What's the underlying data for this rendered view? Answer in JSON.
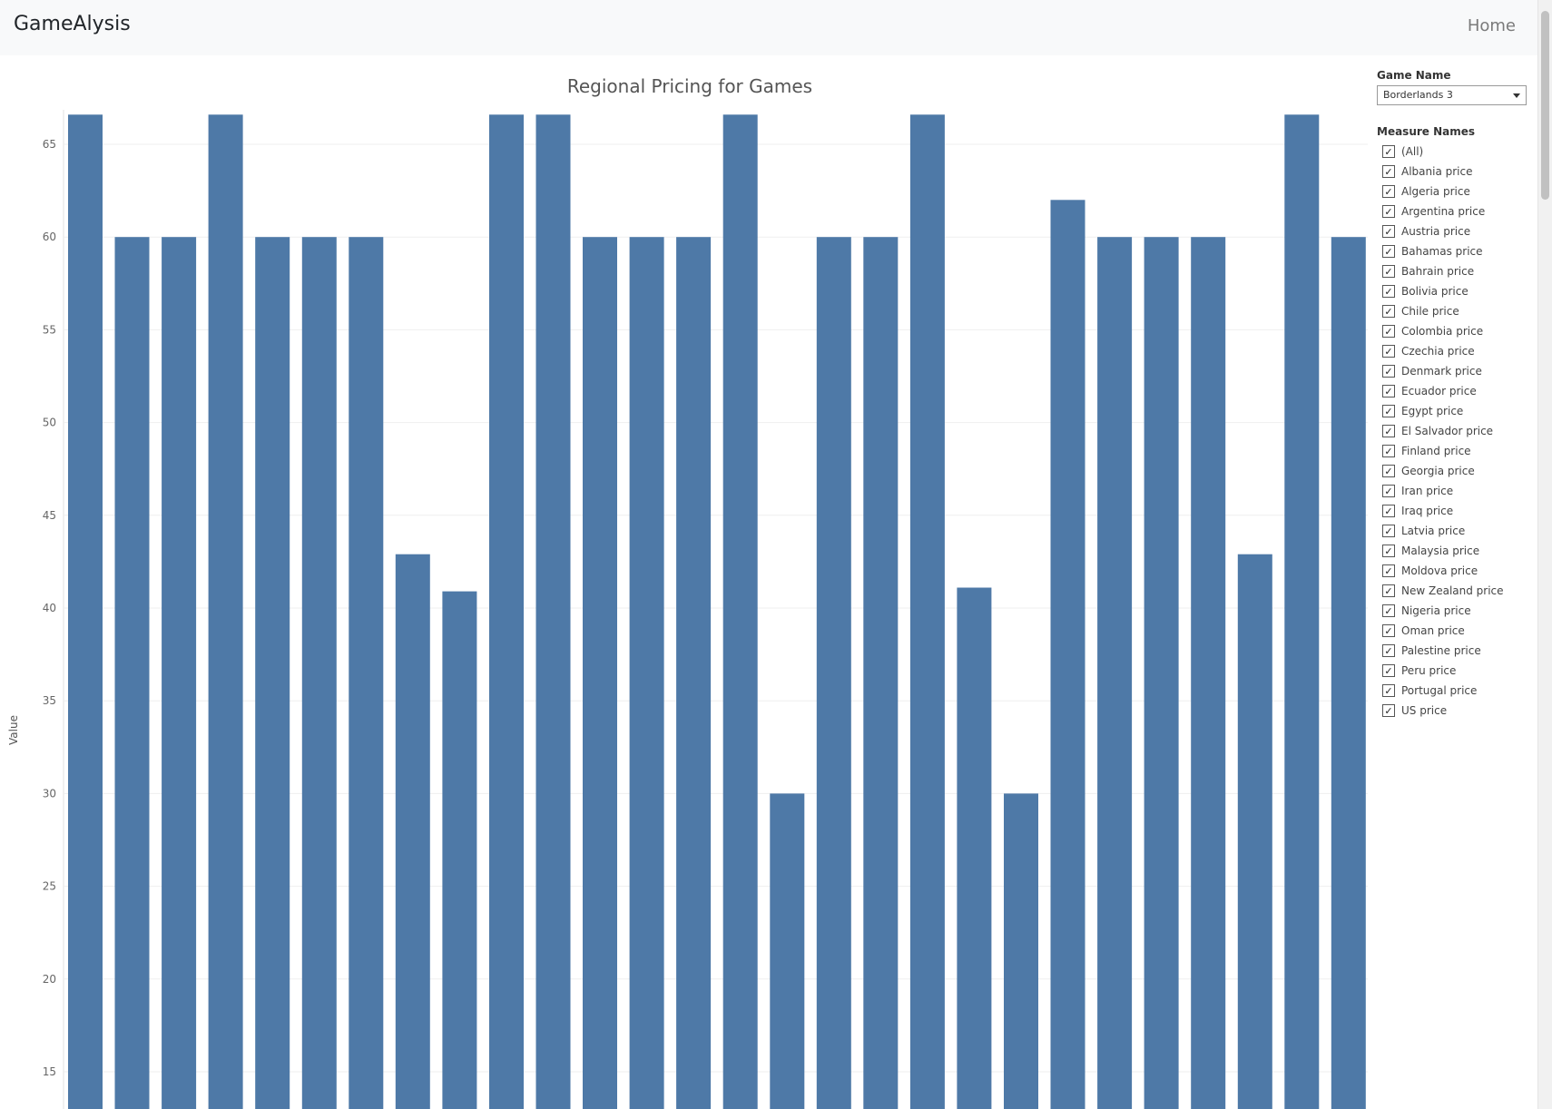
{
  "navbar": {
    "brand": "GameAlysis",
    "home": "Home"
  },
  "filters": {
    "game_name_label": "Game Name",
    "game_name_value": "Borderlands 3",
    "measure_label": "Measure Names",
    "measures": [
      "(All)",
      "Albania price",
      "Algeria price",
      "Argentina price",
      "Austria price",
      "Bahamas price",
      "Bahrain price",
      "Bolivia price",
      "Chile price",
      "Colombia price",
      "Czechia price",
      "Denmark price",
      "Ecuador price",
      "Egypt price",
      "El Salvador price",
      "Finland price",
      "Georgia price",
      "Iran price",
      "Iraq price",
      "Latvia price",
      "Malaysia price",
      "Moldova price",
      "New Zealand price",
      "Nigeria price",
      "Oman price",
      "Palestine price",
      "Peru price",
      "Portugal price",
      "US price"
    ]
  },
  "chart_data": {
    "type": "bar",
    "title": "Regional Pricing for Games",
    "ylabel": "Value",
    "ylim": [
      15,
      69
    ],
    "yticks": [
      15,
      20,
      25,
      30,
      35,
      40,
      45,
      50,
      55,
      60,
      65
    ],
    "grid": true,
    "bar_color": "#4e79a7",
    "categories": [
      "Albania price",
      "Algeria price",
      "Argentina price",
      "Austria price",
      "Bahamas price",
      "Bahrain price",
      "Bolivia price",
      "Chile price",
      "Colombia price",
      "Czechia price",
      "Denmark price",
      "Ecuador price",
      "Egypt price",
      "El Salvador price",
      "Finland price",
      "Georgia price",
      "Iran price",
      "Iraq price",
      "Latvia price",
      "Malaysia price",
      "Moldova price",
      "New Zealand price",
      "Nigeria price",
      "Oman price",
      "Palestine price",
      "Peru price",
      "Portugal price",
      "US price"
    ],
    "values": [
      66.6,
      60,
      60,
      66.6,
      60,
      60,
      60,
      42.9,
      40.9,
      66.6,
      66.6,
      60,
      60,
      60,
      66.6,
      30,
      60,
      60,
      66.6,
      41.1,
      30,
      62,
      60,
      60,
      60,
      42.9,
      66.6,
      60
    ]
  }
}
